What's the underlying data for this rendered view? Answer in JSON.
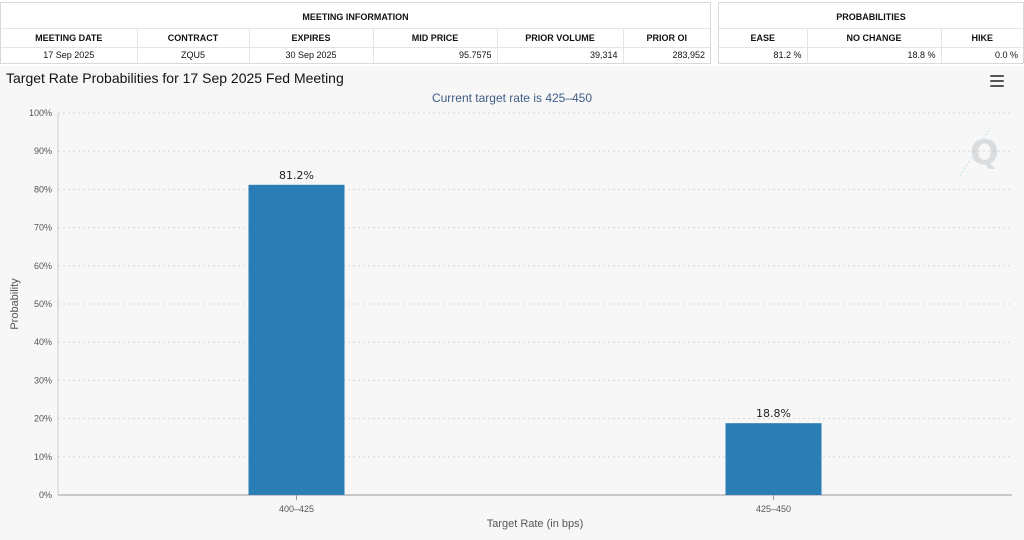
{
  "meeting_info": {
    "title": "MEETING INFORMATION",
    "headers": [
      "MEETING DATE",
      "CONTRACT",
      "EXPIRES",
      "MID PRICE",
      "PRIOR VOLUME",
      "PRIOR OI"
    ],
    "row": [
      "17 Sep 2025",
      "ZQU5",
      "30 Sep 2025",
      "95.7575",
      "39,314",
      "283,952"
    ]
  },
  "probabilities": {
    "title": "PROBABILITIES",
    "headers": [
      "EASE",
      "NO CHANGE",
      "HIKE"
    ],
    "row": [
      "81.2 %",
      "18.8 %",
      "0.0 %"
    ]
  },
  "chart_data": {
    "type": "bar",
    "title": "Target Rate Probabilities for 17 Sep 2025 Fed Meeting",
    "subtitle": "Current target rate is 425–450",
    "categories": [
      "400–425",
      "425–450"
    ],
    "values": [
      81.2,
      18.8
    ],
    "data_labels": [
      "81.2%",
      "18.8%"
    ],
    "xlabel": "Target Rate (in bps)",
    "ylabel": "Probability",
    "ylim": [
      0,
      100
    ],
    "yticks": [
      0,
      10,
      20,
      30,
      40,
      50,
      60,
      70,
      80,
      90,
      100
    ],
    "ytick_labels": [
      "0%",
      "10%",
      "20%",
      "30%",
      "40%",
      "50%",
      "60%",
      "70%",
      "80%",
      "90%",
      "100%"
    ],
    "grid": true,
    "bar_color": "#2a7db5",
    "grid_color": "#d8d8d8"
  },
  "icons": {
    "menu": "hamburger-menu-icon",
    "watermark": "q-logo-icon"
  }
}
